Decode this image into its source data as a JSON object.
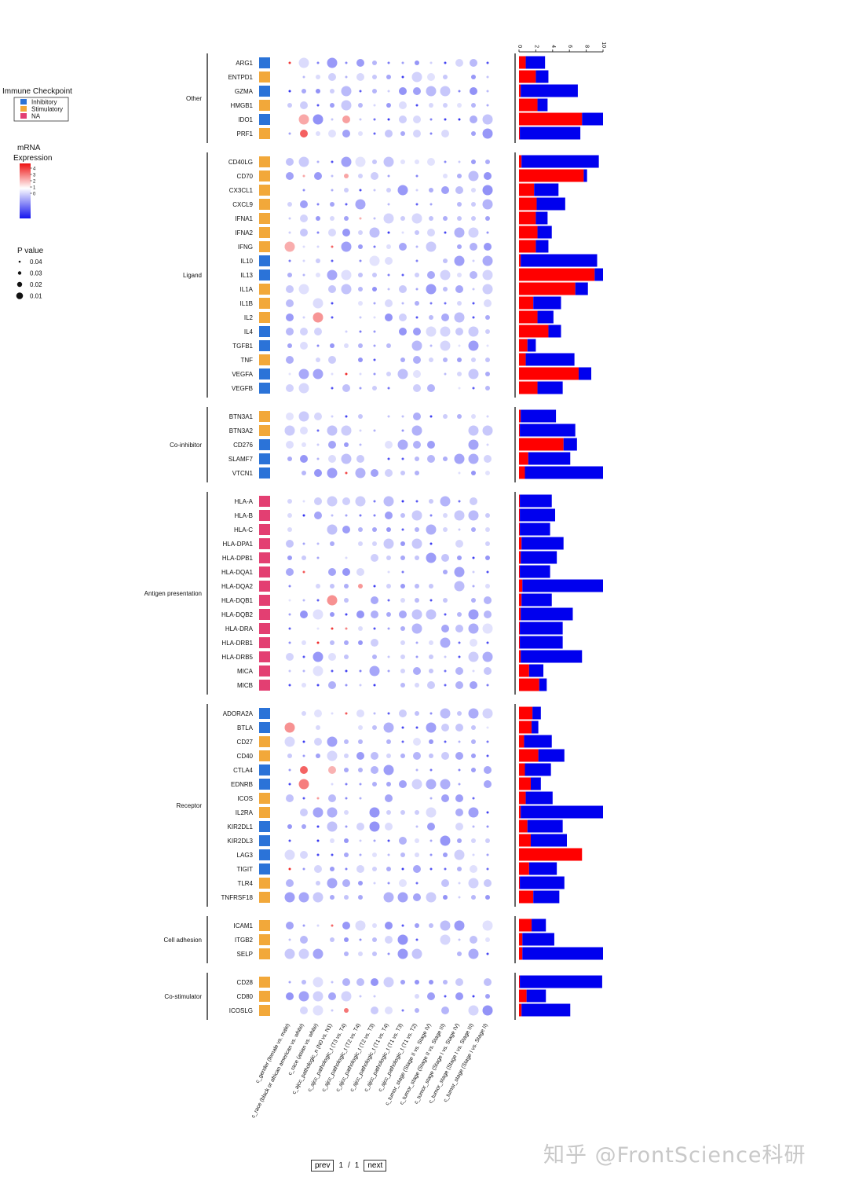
{
  "chart_data": {
    "type": "dotplot",
    "legends": {
      "category": {
        "title": "Immune Checkpoint",
        "items": [
          {
            "label": "Inhibitory",
            "color": "#2b73d8"
          },
          {
            "label": "Stimulatory",
            "color": "#f2a83a"
          },
          {
            "label": "NA",
            "color": "#e33f72"
          }
        ]
      },
      "expression": {
        "title_line1": "mRNA",
        "title_line2": "Expression",
        "ticks": [
          "4",
          "3",
          "2",
          "1",
          "0"
        ],
        "low_color": "#1515ee",
        "mid_color": "#ffffff",
        "high_color": "#ee1111"
      },
      "pvalue": {
        "title": "P value",
        "items": [
          "0.04",
          "0.03",
          "0.02",
          "0.01"
        ]
      }
    },
    "bar_axis": {
      "ticks": [
        "0",
        "2",
        "4",
        "6",
        "8",
        "10"
      ],
      "max": 10
    },
    "bar_colors": {
      "red": "#ff0000",
      "blue": "#0000ee"
    },
    "comparisons": [
      "c_gender (female vs. male)",
      "c_race (black or african american vs. white)",
      "c_race (asian vs. white)",
      "c_ajcc_pathologic_n (N0 vs. N1)",
      "c_ajcc_pathologic_t (T3 vs. T4)",
      "c_ajcc_pathologic_t (T2 vs. T4)",
      "c_ajcc_pathologic_t (T2 vs. T3)",
      "c_ajcc_pathologic_t (T1 vs. T4)",
      "c_ajcc_pathologic_t (T1 vs. T3)",
      "c_ajcc_pathologic_t (T1 vs. T2)",
      "c_tumor_stage (Stage II vs. Stage IV)",
      "c_tumor_stage (Stage II vs. Stage III)",
      "c_tumor_stage (Stage I vs. Stage IV)",
      "c_tumor_stage (Stage I vs. Stage III)",
      "c_tumor_stage (Stage I vs. Stage II)"
    ],
    "groups": [
      {
        "name": "Other",
        "genes": [
          {
            "gene": "ARG1",
            "cat": 0,
            "red": 0.8,
            "blue": 2.3
          },
          {
            "gene": "ENTPD1",
            "cat": 1,
            "red": 2.0,
            "blue": 1.5
          },
          {
            "gene": "GZMA",
            "cat": 0,
            "red": 0.2,
            "blue": 6.8
          },
          {
            "gene": "HMGB1",
            "cat": 1,
            "red": 2.2,
            "blue": 1.2
          },
          {
            "gene": "IDO1",
            "cat": 0,
            "red": 7.5,
            "blue": 2.5
          },
          {
            "gene": "PRF1",
            "cat": 1,
            "red": 0.1,
            "blue": 7.2
          }
        ]
      },
      {
        "name": "Ligand",
        "genes": [
          {
            "gene": "CD40LG",
            "cat": 1,
            "red": 0.3,
            "blue": 9.2
          },
          {
            "gene": "CD70",
            "cat": 1,
            "red": 7.7,
            "blue": 0.4
          },
          {
            "gene": "CX3CL1",
            "cat": 1,
            "red": 1.8,
            "blue": 2.9
          },
          {
            "gene": "CXCL9",
            "cat": 1,
            "red": 2.1,
            "blue": 3.4
          },
          {
            "gene": "IFNA1",
            "cat": 1,
            "red": 2.0,
            "blue": 1.4
          },
          {
            "gene": "IFNA2",
            "cat": 1,
            "red": 2.2,
            "blue": 1.7
          },
          {
            "gene": "IFNG",
            "cat": 1,
            "red": 2.0,
            "blue": 1.5
          },
          {
            "gene": "IL10",
            "cat": 0,
            "red": 0.2,
            "blue": 9.1
          },
          {
            "gene": "IL13",
            "cat": 0,
            "red": 9.0,
            "blue": 1.0
          },
          {
            "gene": "IL1A",
            "cat": 1,
            "red": 6.7,
            "blue": 1.5
          },
          {
            "gene": "IL1B",
            "cat": 1,
            "red": 1.7,
            "blue": 3.3
          },
          {
            "gene": "IL2",
            "cat": 1,
            "red": 2.2,
            "blue": 1.9
          },
          {
            "gene": "IL4",
            "cat": 0,
            "red": 3.5,
            "blue": 1.5
          },
          {
            "gene": "TGFB1",
            "cat": 0,
            "red": 1.0,
            "blue": 1.0
          },
          {
            "gene": "TNF",
            "cat": 1,
            "red": 0.8,
            "blue": 5.8
          },
          {
            "gene": "VEGFA",
            "cat": 0,
            "red": 7.1,
            "blue": 1.5
          },
          {
            "gene": "VEGFB",
            "cat": 0,
            "red": 2.2,
            "blue": 3.0
          }
        ]
      },
      {
        "name": "Co-inhibitor",
        "genes": [
          {
            "gene": "BTN3A1",
            "cat": 1,
            "red": 0.2,
            "blue": 4.2
          },
          {
            "gene": "BTN3A2",
            "cat": 1,
            "red": 0.1,
            "blue": 6.6
          },
          {
            "gene": "CD276",
            "cat": 0,
            "red": 5.3,
            "blue": 1.6
          },
          {
            "gene": "SLAMF7",
            "cat": 0,
            "red": 1.1,
            "blue": 5.0
          },
          {
            "gene": "VTCN1",
            "cat": 0,
            "red": 0.7,
            "blue": 9.3
          }
        ]
      },
      {
        "name": "Antigen presentation",
        "genes": [
          {
            "gene": "HLA-A",
            "cat": 2,
            "red": 0.1,
            "blue": 3.8
          },
          {
            "gene": "HLA-B",
            "cat": 2,
            "red": 0.1,
            "blue": 4.2
          },
          {
            "gene": "HLA-C",
            "cat": 2,
            "red": 0.1,
            "blue": 3.6
          },
          {
            "gene": "HLA-DPA1",
            "cat": 2,
            "red": 0.3,
            "blue": 5.0
          },
          {
            "gene": "HLA-DPB1",
            "cat": 2,
            "red": 0.2,
            "blue": 4.3
          },
          {
            "gene": "HLA-DQA1",
            "cat": 2,
            "red": 0.1,
            "blue": 3.6
          },
          {
            "gene": "HLA-DQA2",
            "cat": 2,
            "red": 0.4,
            "blue": 9.6
          },
          {
            "gene": "HLA-DQB1",
            "cat": 2,
            "red": 0.3,
            "blue": 3.6
          },
          {
            "gene": "HLA-DQB2",
            "cat": 2,
            "red": 0.2,
            "blue": 6.2
          },
          {
            "gene": "HLA-DRA",
            "cat": 2,
            "red": 0.1,
            "blue": 5.1
          },
          {
            "gene": "HLA-DRB1",
            "cat": 2,
            "red": 0.1,
            "blue": 5.1
          },
          {
            "gene": "HLA-DRB5",
            "cat": 2,
            "red": 0.2,
            "blue": 7.3
          },
          {
            "gene": "MICA",
            "cat": 2,
            "red": 1.2,
            "blue": 1.7
          },
          {
            "gene": "MICB",
            "cat": 2,
            "red": 2.4,
            "blue": 0.9
          }
        ]
      },
      {
        "name": "Receptor",
        "genes": [
          {
            "gene": "ADORA2A",
            "cat": 0,
            "red": 1.6,
            "blue": 1.0
          },
          {
            "gene": "BTLA",
            "cat": 0,
            "red": 1.5,
            "blue": 0.8
          },
          {
            "gene": "CD27",
            "cat": 1,
            "red": 0.6,
            "blue": 3.3
          },
          {
            "gene": "CD40",
            "cat": 1,
            "red": 2.3,
            "blue": 3.1
          },
          {
            "gene": "CTLA4",
            "cat": 0,
            "red": 0.7,
            "blue": 3.1
          },
          {
            "gene": "EDNRB",
            "cat": 0,
            "red": 1.4,
            "blue": 1.2
          },
          {
            "gene": "ICOS",
            "cat": 1,
            "red": 0.8,
            "blue": 3.2
          },
          {
            "gene": "IL2RA",
            "cat": 1,
            "red": 0.2,
            "blue": 9.8
          },
          {
            "gene": "KIR2DL1",
            "cat": 0,
            "red": 1.0,
            "blue": 4.2
          },
          {
            "gene": "KIR2DL3",
            "cat": 0,
            "red": 1.4,
            "blue": 4.3
          },
          {
            "gene": "LAG3",
            "cat": 0,
            "red": 7.5,
            "blue": 0.0
          },
          {
            "gene": "TIGIT",
            "cat": 0,
            "red": 1.2,
            "blue": 3.3
          },
          {
            "gene": "TLR4",
            "cat": 1,
            "red": 0.1,
            "blue": 5.3
          },
          {
            "gene": "TNFRSF18",
            "cat": 1,
            "red": 1.7,
            "blue": 3.1
          }
        ]
      },
      {
        "name": "Cell adhesion",
        "genes": [
          {
            "gene": "ICAM1",
            "cat": 1,
            "red": 1.5,
            "blue": 1.7
          },
          {
            "gene": "ITGB2",
            "cat": 1,
            "red": 0.4,
            "blue": 3.8
          },
          {
            "gene": "SELP",
            "cat": 1,
            "red": 0.4,
            "blue": 9.6
          }
        ]
      },
      {
        "name": "Co-stimulator",
        "genes": [
          {
            "gene": "CD28",
            "cat": 1,
            "red": 0.1,
            "blue": 9.8
          },
          {
            "gene": "CD80",
            "cat": 1,
            "red": 0.9,
            "blue": 2.3
          },
          {
            "gene": "ICOSLG",
            "cat": 1,
            "red": 0.3,
            "blue": 5.8
          }
        ]
      }
    ]
  },
  "pager": {
    "prev_label": "prev",
    "current_page": "1",
    "separator": "/",
    "total_pages": "1",
    "next_label": "next"
  },
  "watermark": {
    "text": "知乎 @FrontScience科研"
  }
}
